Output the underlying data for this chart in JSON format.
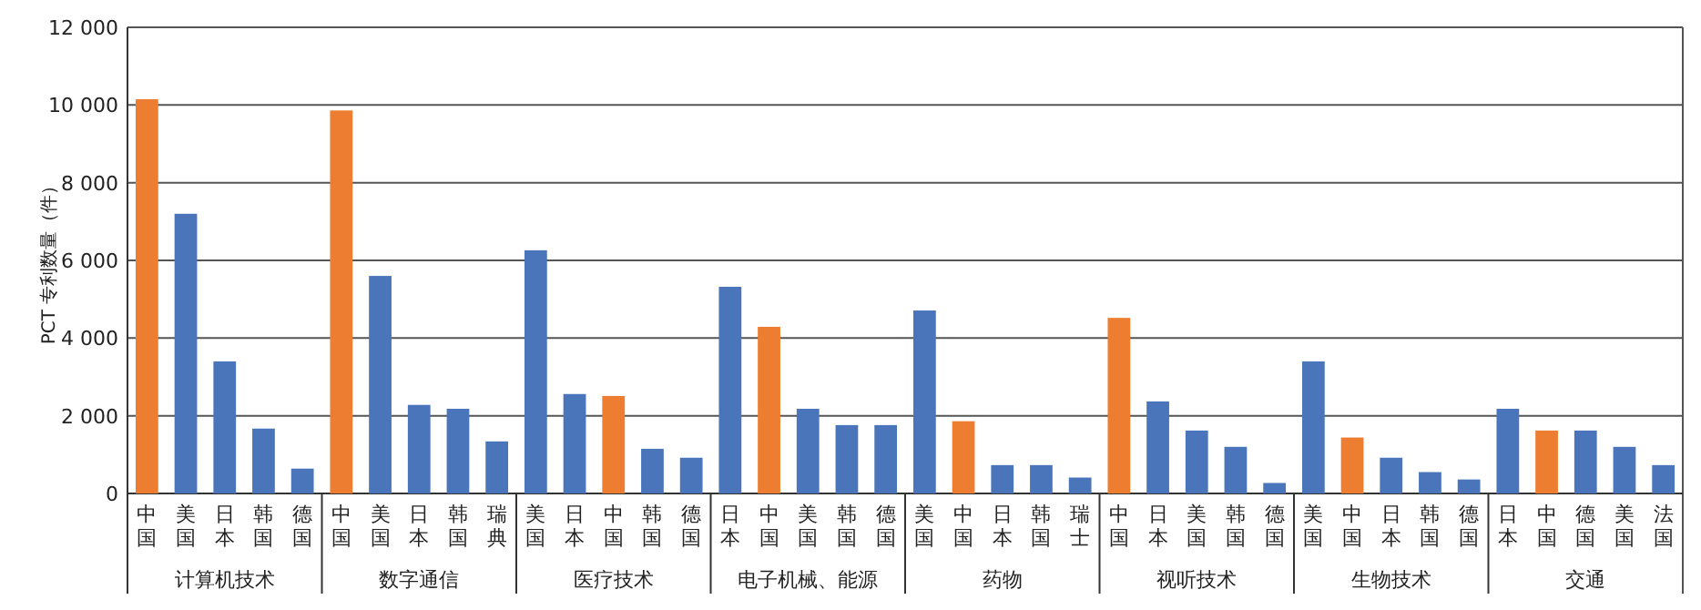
{
  "chart_data": {
    "type": "bar",
    "ylabel": "PCT 专利数量（件）",
    "categories": [
      "中国",
      "美国",
      "日本",
      "韩国",
      "德国",
      "中国",
      "美国",
      "日本",
      "韩国",
      "瑞典",
      "美国",
      "日本",
      "中国",
      "韩国",
      "德国",
      "日本",
      "中国",
      "美国",
      "韩国",
      "德国",
      "美国",
      "中国",
      "日本",
      "韩国",
      "瑞士",
      "中国",
      "日本",
      "美国",
      "韩国",
      "德国",
      "美国",
      "中国",
      "日本",
      "韩国",
      "德国",
      "日本",
      "中国",
      "德国",
      "美国",
      "法国"
    ],
    "values": [
      10150,
      7200,
      3400,
      1670,
      640,
      9860,
      5600,
      2280,
      2180,
      1340,
      6260,
      2560,
      2510,
      1150,
      920,
      5320,
      4290,
      2180,
      1760,
      1760,
      4710,
      1860,
      730,
      730,
      410,
      4520,
      2370,
      1620,
      1200,
      270,
      3400,
      1440,
      920,
      550,
      360,
      2180,
      1620,
      1620,
      1200,
      730
    ],
    "colors": [
      "#ed7d31",
      "#4a75bb",
      "#4a75bb",
      "#4a75bb",
      "#4a75bb",
      "#ed7d31",
      "#4a75bb",
      "#4a75bb",
      "#4a75bb",
      "#4a75bb",
      "#4a75bb",
      "#4a75bb",
      "#ed7d31",
      "#4a75bb",
      "#4a75bb",
      "#4a75bb",
      "#ed7d31",
      "#4a75bb",
      "#4a75bb",
      "#4a75bb",
      "#4a75bb",
      "#ed7d31",
      "#4a75bb",
      "#4a75bb",
      "#4a75bb",
      "#ed7d31",
      "#4a75bb",
      "#4a75bb",
      "#4a75bb",
      "#4a75bb",
      "#4a75bb",
      "#ed7d31",
      "#4a75bb",
      "#4a75bb",
      "#4a75bb",
      "#4a75bb",
      "#ed7d31",
      "#4a75bb",
      "#4a75bb",
      "#4a75bb"
    ],
    "annotations": [
      "计算机技术",
      "数字通信",
      "医疗技术",
      "电子机械、能源",
      "药物",
      "视听技术",
      "生物技术",
      "交通"
    ],
    "ylim": [
      0,
      12000
    ],
    "yticks": [
      0,
      {
        "value": 2000,
        "label": "2 000"
      },
      {
        "value": 4000,
        "label": "4 000"
      },
      {
        "value": 6000,
        "label": "6 000"
      },
      {
        "value": 8000,
        "label": "8 000"
      },
      {
        "value": 10000,
        "label": "10 000"
      },
      {
        "value": 12000,
        "label": "12 000"
      }
    ],
    "grid": true
  }
}
